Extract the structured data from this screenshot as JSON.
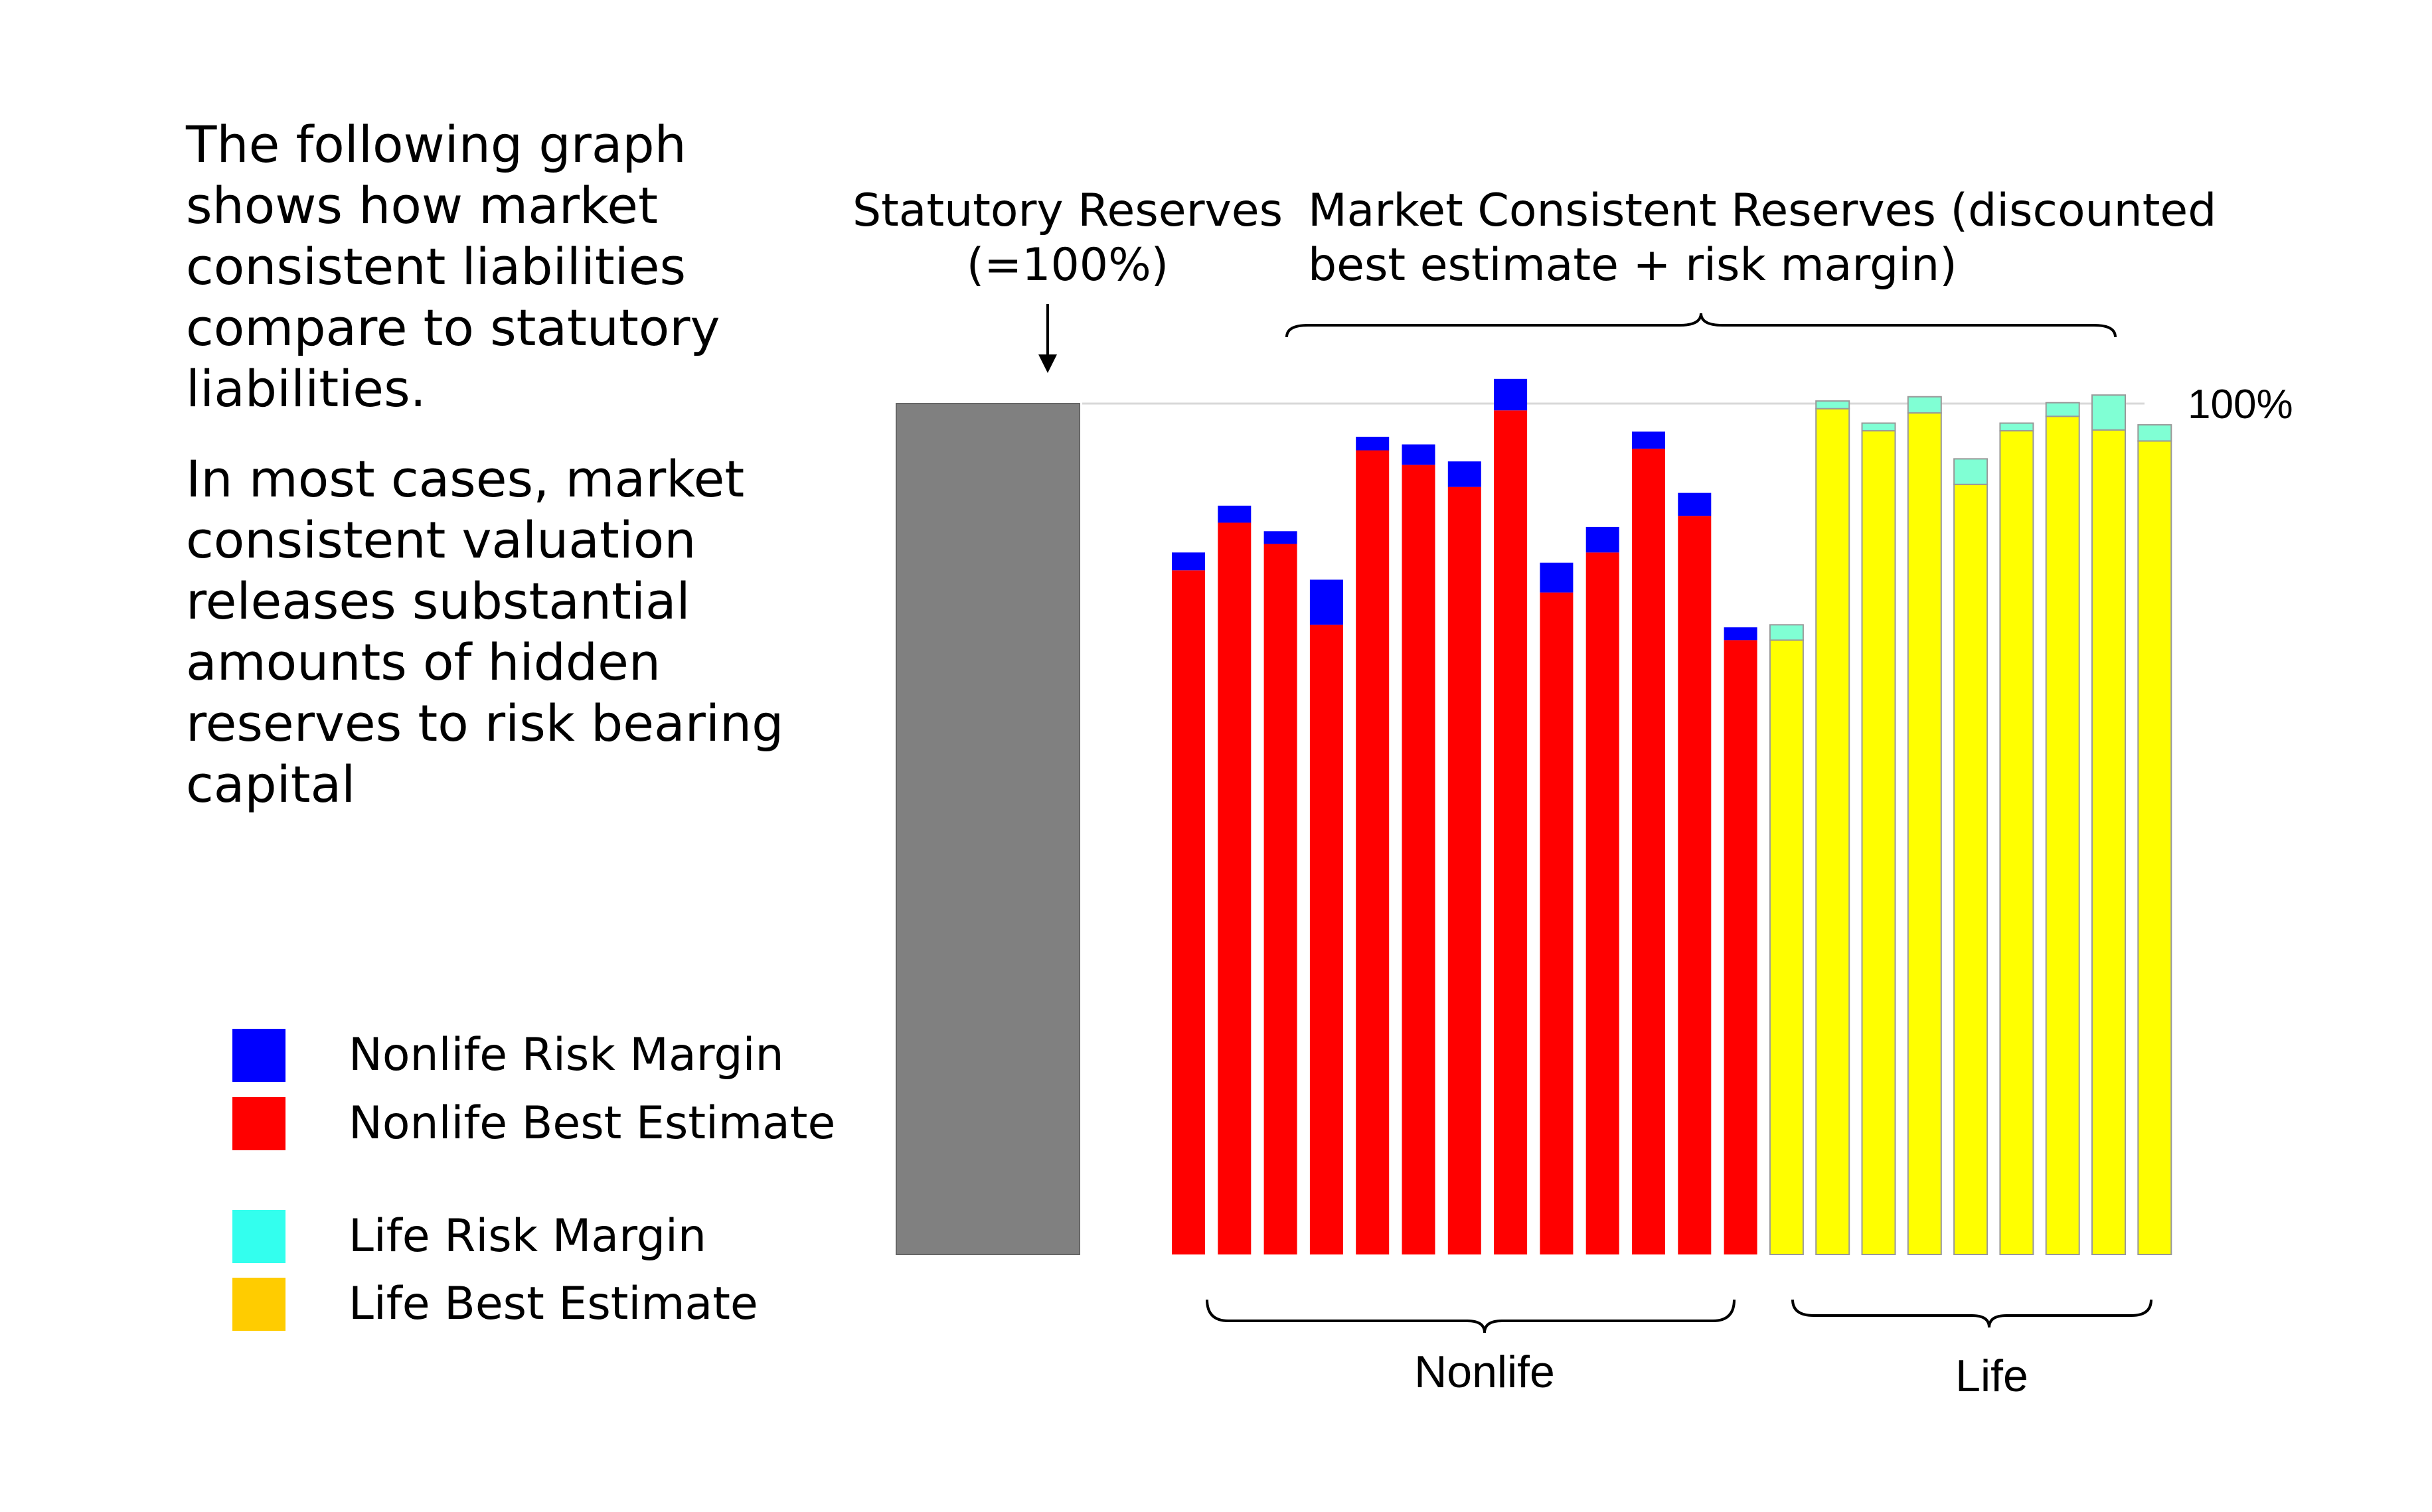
{
  "intro": {
    "paragraph1": "The following graph shows how market consistent liabilities compare to statutory liabilities.",
    "paragraph2": "In most cases, market consistent valuation releases substantial amounts of hidden reserves to risk bearing capital"
  },
  "legend": [
    {
      "label": "Nonlife Risk Margin",
      "color": "#0000ff"
    },
    {
      "label": "Nonlife Best Estimate",
      "color": "#ff0000"
    },
    {
      "label": "Life Risk Margin",
      "color": "#33ffee"
    },
    {
      "label": "Life Best Estimate",
      "color": "#ffcc00"
    }
  ],
  "annotations": {
    "statutory_line1": "Statutory Reserves",
    "statutory_line2": "(=100%)",
    "market_line1": "Market Consistent Reserves (discounted",
    "market_line2": "best estimate + risk margin)",
    "hundred_label": "100%"
  },
  "colors": {
    "statutory": "#808080",
    "nonlife_best_estimate": "#ff0000",
    "nonlife_risk_margin": "#0000ff",
    "life_best_estimate": "#ffff00",
    "life_risk_margin": "#80ffd4",
    "life_bar_stroke": "#999999"
  },
  "chart_data": {
    "type": "bar",
    "stacked": true,
    "ylim": [
      0,
      100
    ],
    "reference_line": 100,
    "groups": [
      {
        "name": "Nonlife",
        "bar_count": 13
      },
      {
        "name": "Life",
        "bar_count": 9
      }
    ],
    "statutory": {
      "label": "Statutory Reserves",
      "value": 100
    },
    "nonlife": {
      "best_estimate": [
        80.4,
        86.0,
        83.5,
        74.0,
        94.5,
        92.8,
        90.2,
        99.2,
        77.8,
        82.5,
        94.7,
        86.8,
        72.2
      ],
      "risk_margin": [
        2.1,
        2.0,
        1.5,
        5.3,
        1.6,
        2.4,
        3.0,
        3.7,
        3.5,
        3.0,
        2.0,
        2.7,
        1.5
      ]
    },
    "life": {
      "best_estimate": [
        72.2,
        99.4,
        96.8,
        98.9,
        90.5,
        96.8,
        98.5,
        96.9,
        95.6
      ],
      "risk_margin": [
        1.8,
        0.9,
        0.9,
        1.9,
        3.0,
        0.9,
        1.6,
        4.1,
        1.9
      ]
    }
  }
}
